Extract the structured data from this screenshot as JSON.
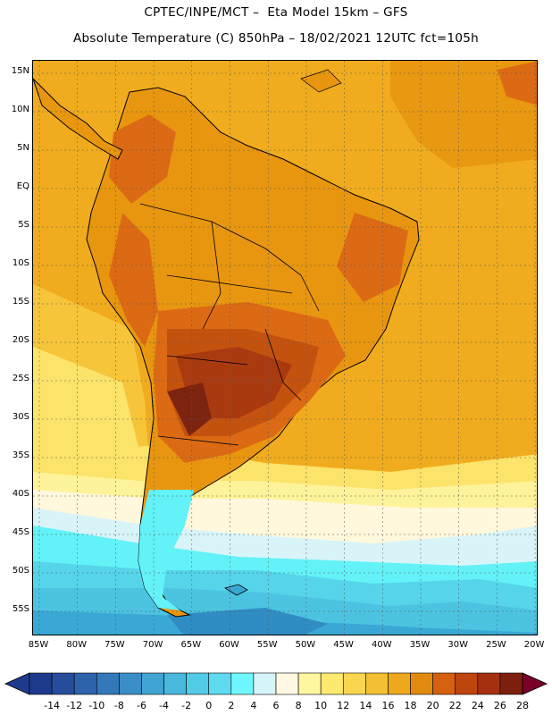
{
  "header": {
    "line1": "CPTEC/INPE/MCT –  Eta Model 15km – GFS",
    "line2": "Absolute Temperature (C) 850hPa – 18/02/2021 12UTC fct=105h"
  },
  "map": {
    "lat_labels": [
      "15N",
      "10N",
      "5N",
      "EQ",
      "5S",
      "10S",
      "15S",
      "20S",
      "25S",
      "30S",
      "35S",
      "40S",
      "45S",
      "50S",
      "55S"
    ],
    "lon_labels": [
      "85W",
      "80W",
      "75W",
      "70W",
      "65W",
      "60W",
      "55W",
      "50W",
      "45W",
      "40W",
      "35W",
      "30W",
      "25W",
      "20W"
    ],
    "colors": {
      "ocean_warm": "#f0ac1e",
      "ocean_18": "#f6c53a",
      "land_20": "#e8960f",
      "land_22": "#dc6a14",
      "land_24": "#c4520f",
      "land_26": "#a93a10",
      "land_28": "#7d2410",
      "cool_12": "#fce36a",
      "cool_10": "#fef39a",
      "cool_8": "#fff8dc",
      "cool_6": "#d8f4f8",
      "cool_4": "#63f2f7",
      "cool_2": "#55d4ea",
      "cool_0": "#4cc4e1",
      "cold_m2": "#3aa8d4",
      "cold_m4": "#2f8dc4",
      "coastline": "#000000"
    }
  },
  "colorbar": {
    "labels": [
      "-14",
      "-12",
      "-10",
      "-8",
      "-6",
      "-4",
      "-2",
      "0",
      "2",
      "4",
      "6",
      "8",
      "10",
      "12",
      "14",
      "16",
      "18",
      "20",
      "22",
      "24",
      "26",
      "28"
    ],
    "colors": [
      "#1e3a8c",
      "#264d9c",
      "#2d63ab",
      "#3378b8",
      "#3a8ec6",
      "#41a4d2",
      "#49b8dd",
      "#52cbe6",
      "#5edbef",
      "#6ff7ff",
      "#d6f5fb",
      "#fff8e2",
      "#fff6a0",
      "#fde96e",
      "#f8d650",
      "#f2c032",
      "#eea81e",
      "#e28a0f",
      "#d5600f",
      "#bf450f",
      "#a4300f",
      "#7c1f0f",
      "#7a0028"
    ]
  }
}
